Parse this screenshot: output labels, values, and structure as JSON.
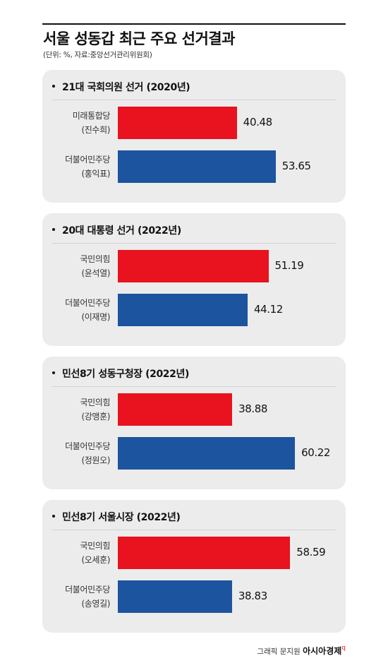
{
  "title": "서울 성동갑 최근 주요 선거결과",
  "subtitle": "(단위: %, 자료:중앙선거관리위원회)",
  "credit": {
    "author": "그래픽 문지원",
    "brand": "아시아경제",
    "mark": "q"
  },
  "colors": {
    "red": "#e8131f",
    "blue": "#1c549f",
    "panel": "#ececec"
  },
  "chart_data": [
    {
      "type": "bar",
      "orientation": "horizontal",
      "title": "21대 국회의원 선거 (2020년)",
      "xlim": [
        0,
        70
      ],
      "categories": [
        {
          "party": "미래통합당",
          "candidate": "(진수희)",
          "value": 40.48,
          "color": "red"
        },
        {
          "party": "더불어민주당",
          "candidate": "(홍익표)",
          "value": 53.65,
          "color": "blue"
        }
      ]
    },
    {
      "type": "bar",
      "orientation": "horizontal",
      "title": "20대 대통령 선거 (2022년)",
      "xlim": [
        0,
        70
      ],
      "categories": [
        {
          "party": "국민의힘",
          "candidate": "(윤석열)",
          "value": 51.19,
          "color": "red"
        },
        {
          "party": "더불어민주당",
          "candidate": "(이재명)",
          "value": 44.12,
          "color": "blue"
        }
      ]
    },
    {
      "type": "bar",
      "orientation": "horizontal",
      "title": "민선8기 성동구청장 (2022년)",
      "xlim": [
        0,
        70
      ],
      "categories": [
        {
          "party": "국민의힘",
          "candidate": "(강맹훈)",
          "value": 38.88,
          "color": "red"
        },
        {
          "party": "더불어민주당",
          "candidate": "(정원오)",
          "value": 60.22,
          "color": "blue"
        }
      ]
    },
    {
      "type": "bar",
      "orientation": "horizontal",
      "title": "민선8기 서울시장 (2022년)",
      "xlim": [
        0,
        70
      ],
      "categories": [
        {
          "party": "국민의힘",
          "candidate": "(오세훈)",
          "value": 58.59,
          "color": "red"
        },
        {
          "party": "더불어민주당",
          "candidate": "(송영길)",
          "value": 38.83,
          "color": "blue"
        }
      ]
    }
  ]
}
